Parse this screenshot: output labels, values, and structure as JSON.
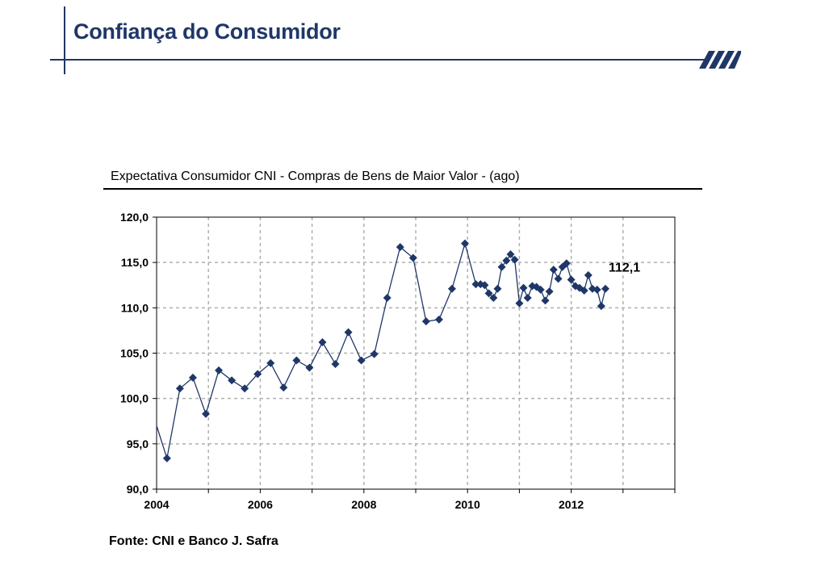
{
  "header": {
    "title": "Confiança do Consumidor"
  },
  "colors": {
    "brand": "#1f3768",
    "series": "#1f3768",
    "grid": "#b0b0b0"
  },
  "logo_icon": "safra-stripes-logo",
  "chart_data": {
    "type": "line",
    "title": "Expectativa Consumidor CNI - Compras de Bens de Maior Valor - (ago)",
    "xlabel": "",
    "ylabel": "",
    "xlim": [
      2004,
      2014
    ],
    "ylim": [
      90,
      120
    ],
    "xticks": [
      "2004",
      "2006",
      "2008",
      "2010",
      "2012"
    ],
    "yticks": [
      "120,0",
      "115,0",
      "110,0",
      "105,0",
      "100,0",
      "95,0",
      "90,0"
    ],
    "grid": true,
    "series": [
      {
        "x": [
          2004.0,
          2004.2,
          2004.45,
          2004.7,
          2004.95,
          2005.2,
          2005.45,
          2005.7,
          2005.95,
          2006.2,
          2006.45,
          2006.7,
          2006.95,
          2007.2,
          2007.45,
          2007.7,
          2007.95,
          2008.2,
          2008.45,
          2008.7,
          2008.95,
          2009.2,
          2009.45,
          2009.7,
          2009.95,
          2010.16,
          2010.25,
          2010.33,
          2010.41,
          2010.5,
          2010.58,
          2010.66,
          2010.75,
          2010.83,
          2010.91,
          2011.0,
          2011.08,
          2011.16,
          2011.25,
          2011.33,
          2011.41,
          2011.5,
          2011.58,
          2011.66,
          2011.75,
          2011.83,
          2011.91,
          2012.0,
          2012.08,
          2012.16,
          2012.25,
          2012.33,
          2012.41,
          2012.5,
          2012.58,
          2012.66
        ],
        "values": [
          97.0,
          93.4,
          101.1,
          102.3,
          98.3,
          103.1,
          102.0,
          101.1,
          102.7,
          103.9,
          101.2,
          104.2,
          103.4,
          106.2,
          103.8,
          107.3,
          104.2,
          104.9,
          111.1,
          116.7,
          115.5,
          108.5,
          108.7,
          112.1,
          117.1,
          112.6,
          112.6,
          112.5,
          111.6,
          111.1,
          112.1,
          114.5,
          115.2,
          115.9,
          115.3,
          110.5,
          112.2,
          111.1,
          112.4,
          112.3,
          112.0,
          110.8,
          111.8,
          114.2,
          113.2,
          114.5,
          114.9,
          113.1,
          112.4,
          112.2,
          111.9,
          113.6,
          112.1,
          112.0,
          110.2,
          112.1
        ]
      }
    ],
    "annotation": {
      "text": "112,1",
      "x": 2012.66,
      "y": 112.1
    }
  },
  "source": {
    "text": "Fonte: CNI e Banco J. Safra"
  }
}
